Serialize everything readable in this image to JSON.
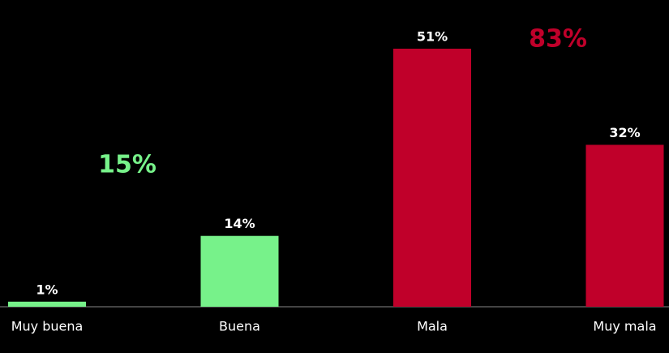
{
  "chart_data": {
    "type": "bar",
    "categories": [
      "Muy buena",
      "Buena",
      "Mala",
      "Muy mala"
    ],
    "values": [
      1,
      14,
      51,
      32
    ],
    "value_labels": [
      "1%",
      "14%",
      "51%",
      "32%"
    ],
    "colors": [
      "#77f28a",
      "#77f28a",
      "#c0002a",
      "#c0002a"
    ],
    "annotations": [
      {
        "text": "15%",
        "color": "#77f28a"
      },
      {
        "text": "83%",
        "color": "#c0002a"
      }
    ]
  }
}
